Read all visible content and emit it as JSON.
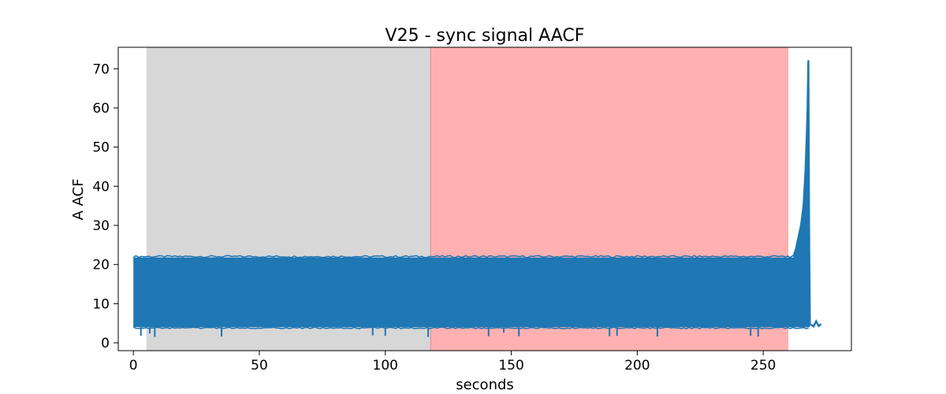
{
  "chart_data": {
    "type": "line",
    "title": "V25 - sync signal AACF",
    "xlabel": "seconds",
    "ylabel": "A ACF",
    "xlim": [
      -6,
      285
    ],
    "ylim": [
      -2,
      75.5
    ],
    "xticks": [
      0,
      50,
      100,
      150,
      200,
      250
    ],
    "yticks": [
      0,
      10,
      20,
      30,
      40,
      50,
      60,
      70
    ],
    "grid": false,
    "legend": "none",
    "shaded_regions": [
      {
        "x0": 5.2,
        "x1": 118,
        "color": "#d7d7d7"
      },
      {
        "x0": 118,
        "x1": 260,
        "color": "#ffb1b1"
      }
    ],
    "series": [
      {
        "color": "#1f77b4",
        "oscillation_band": {
          "x_start": 0,
          "x_end": 268,
          "y_low": 4,
          "y_high": 21.8
        },
        "dips": [
          {
            "x": 3,
            "y": 1.8
          },
          {
            "x": 6.5,
            "y": 2.4
          },
          {
            "x": 8.5,
            "y": 1.5
          },
          {
            "x": 35,
            "y": 1.6
          },
          {
            "x": 95,
            "y": 1.9
          },
          {
            "x": 100,
            "y": 1.8
          },
          {
            "x": 117,
            "y": 1.5
          },
          {
            "x": 141,
            "y": 1.7
          },
          {
            "x": 147,
            "y": 2.6
          },
          {
            "x": 153,
            "y": 1.7
          },
          {
            "x": 189,
            "y": 1.7
          },
          {
            "x": 192,
            "y": 1.8
          },
          {
            "x": 208,
            "y": 1.6
          },
          {
            "x": 245,
            "y": 1.8
          },
          {
            "x": 248,
            "y": 1.6
          }
        ],
        "spike": [
          {
            "x": 262,
            "y": 22
          },
          {
            "x": 263,
            "y": 24
          },
          {
            "x": 264,
            "y": 27
          },
          {
            "x": 265,
            "y": 30
          },
          {
            "x": 266,
            "y": 35
          },
          {
            "x": 266.8,
            "y": 44
          },
          {
            "x": 267.3,
            "y": 53
          },
          {
            "x": 267.6,
            "y": 60
          },
          {
            "x": 267.9,
            "y": 72
          },
          {
            "x": 268.2,
            "y": 30
          },
          {
            "x": 268.5,
            "y": 5
          }
        ],
        "tail": [
          {
            "x": 268.5,
            "y": 4.8
          },
          {
            "x": 270,
            "y": 4.2
          },
          {
            "x": 271,
            "y": 5.5
          },
          {
            "x": 272,
            "y": 4.3
          },
          {
            "x": 273,
            "y": 4.8
          }
        ]
      }
    ]
  }
}
